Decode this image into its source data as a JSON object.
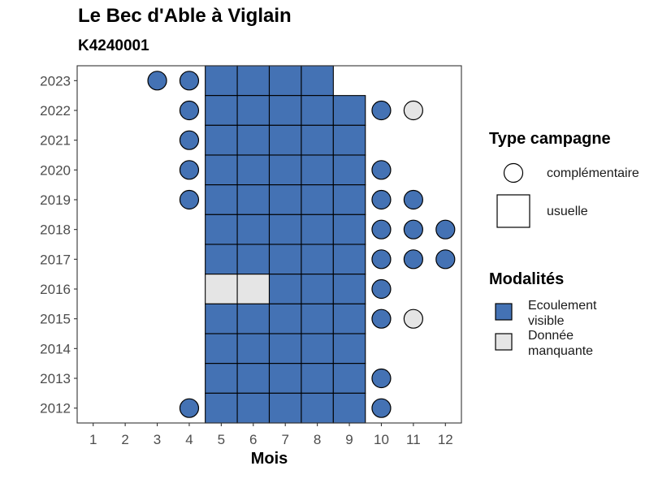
{
  "chart_data": {
    "type": "heatmap",
    "title": "Le Bec d'Able à Viglain",
    "subtitle": "K4240001",
    "xlabel": "Mois",
    "ylabel": "",
    "x_ticks": [
      1,
      2,
      3,
      4,
      5,
      6,
      7,
      8,
      9,
      10,
      11,
      12
    ],
    "y_ticks": [
      2012,
      2013,
      2014,
      2015,
      2016,
      2017,
      2018,
      2019,
      2020,
      2021,
      2022,
      2023
    ],
    "xlim": [
      0.5,
      12.5
    ],
    "ylim": [
      2011.5,
      2023.5
    ],
    "grid": false,
    "legend_position": "right",
    "legend_type": {
      "title": "Type campagne",
      "items": [
        {
          "label": "complémentaire",
          "shape": "circle"
        },
        {
          "label": "usuelle",
          "shape": "square"
        }
      ]
    },
    "legend_modalites": {
      "title": "Modalités",
      "items": [
        {
          "label_line1": "Ecoulement",
          "label_line2": "visible",
          "color": "#4472b4"
        },
        {
          "label_line1": "Donnée",
          "label_line2": "manquante",
          "color": "#e5e5e5"
        }
      ]
    },
    "points": [
      {
        "year": 2023,
        "month": 3,
        "type": "complémentaire",
        "modalite": "Ecoulement visible"
      },
      {
        "year": 2023,
        "month": 4,
        "type": "complémentaire",
        "modalite": "Ecoulement visible"
      },
      {
        "year": 2023,
        "month": 5,
        "type": "usuelle",
        "modalite": "Ecoulement visible"
      },
      {
        "year": 2023,
        "month": 6,
        "type": "usuelle",
        "modalite": "Ecoulement visible"
      },
      {
        "year": 2023,
        "month": 7,
        "type": "usuelle",
        "modalite": "Ecoulement visible"
      },
      {
        "year": 2023,
        "month": 8,
        "type": "usuelle",
        "modalite": "Ecoulement visible"
      },
      {
        "year": 2022,
        "month": 4,
        "type": "complémentaire",
        "modalite": "Ecoulement visible"
      },
      {
        "year": 2022,
        "month": 5,
        "type": "usuelle",
        "modalite": "Ecoulement visible"
      },
      {
        "year": 2022,
        "month": 6,
        "type": "usuelle",
        "modalite": "Ecoulement visible"
      },
      {
        "year": 2022,
        "month": 7,
        "type": "usuelle",
        "modalite": "Ecoulement visible"
      },
      {
        "year": 2022,
        "month": 8,
        "type": "usuelle",
        "modalite": "Ecoulement visible"
      },
      {
        "year": 2022,
        "month": 9,
        "type": "usuelle",
        "modalite": "Ecoulement visible"
      },
      {
        "year": 2022,
        "month": 10,
        "type": "complémentaire",
        "modalite": "Ecoulement visible"
      },
      {
        "year": 2022,
        "month": 11,
        "type": "complémentaire",
        "modalite": "Donnée manquante"
      },
      {
        "year": 2021,
        "month": 4,
        "type": "complémentaire",
        "modalite": "Ecoulement visible"
      },
      {
        "year": 2021,
        "month": 5,
        "type": "usuelle",
        "modalite": "Ecoulement visible"
      },
      {
        "year": 2021,
        "month": 6,
        "type": "usuelle",
        "modalite": "Ecoulement visible"
      },
      {
        "year": 2021,
        "month": 7,
        "type": "usuelle",
        "modalite": "Ecoulement visible"
      },
      {
        "year": 2021,
        "month": 8,
        "type": "usuelle",
        "modalite": "Ecoulement visible"
      },
      {
        "year": 2021,
        "month": 9,
        "type": "usuelle",
        "modalite": "Ecoulement visible"
      },
      {
        "year": 2020,
        "month": 4,
        "type": "complémentaire",
        "modalite": "Ecoulement visible"
      },
      {
        "year": 2020,
        "month": 5,
        "type": "usuelle",
        "modalite": "Ecoulement visible"
      },
      {
        "year": 2020,
        "month": 6,
        "type": "usuelle",
        "modalite": "Ecoulement visible"
      },
      {
        "year": 2020,
        "month": 7,
        "type": "usuelle",
        "modalite": "Ecoulement visible"
      },
      {
        "year": 2020,
        "month": 8,
        "type": "usuelle",
        "modalite": "Ecoulement visible"
      },
      {
        "year": 2020,
        "month": 9,
        "type": "usuelle",
        "modalite": "Ecoulement visible"
      },
      {
        "year": 2020,
        "month": 10,
        "type": "complémentaire",
        "modalite": "Ecoulement visible"
      },
      {
        "year": 2019,
        "month": 4,
        "type": "complémentaire",
        "modalite": "Ecoulement visible"
      },
      {
        "year": 2019,
        "month": 5,
        "type": "usuelle",
        "modalite": "Ecoulement visible"
      },
      {
        "year": 2019,
        "month": 6,
        "type": "usuelle",
        "modalite": "Ecoulement visible"
      },
      {
        "year": 2019,
        "month": 7,
        "type": "usuelle",
        "modalite": "Ecoulement visible"
      },
      {
        "year": 2019,
        "month": 8,
        "type": "usuelle",
        "modalite": "Ecoulement visible"
      },
      {
        "year": 2019,
        "month": 9,
        "type": "usuelle",
        "modalite": "Ecoulement visible"
      },
      {
        "year": 2019,
        "month": 10,
        "type": "complémentaire",
        "modalite": "Ecoulement visible"
      },
      {
        "year": 2019,
        "month": 11,
        "type": "complémentaire",
        "modalite": "Ecoulement visible"
      },
      {
        "year": 2018,
        "month": 5,
        "type": "usuelle",
        "modalite": "Ecoulement visible"
      },
      {
        "year": 2018,
        "month": 6,
        "type": "usuelle",
        "modalite": "Ecoulement visible"
      },
      {
        "year": 2018,
        "month": 7,
        "type": "usuelle",
        "modalite": "Ecoulement visible"
      },
      {
        "year": 2018,
        "month": 8,
        "type": "usuelle",
        "modalite": "Ecoulement visible"
      },
      {
        "year": 2018,
        "month": 9,
        "type": "usuelle",
        "modalite": "Ecoulement visible"
      },
      {
        "year": 2018,
        "month": 10,
        "type": "complémentaire",
        "modalite": "Ecoulement visible"
      },
      {
        "year": 2018,
        "month": 11,
        "type": "complémentaire",
        "modalite": "Ecoulement visible"
      },
      {
        "year": 2018,
        "month": 12,
        "type": "complémentaire",
        "modalite": "Ecoulement visible"
      },
      {
        "year": 2017,
        "month": 5,
        "type": "usuelle",
        "modalite": "Ecoulement visible"
      },
      {
        "year": 2017,
        "month": 6,
        "type": "usuelle",
        "modalite": "Ecoulement visible"
      },
      {
        "year": 2017,
        "month": 7,
        "type": "usuelle",
        "modalite": "Ecoulement visible"
      },
      {
        "year": 2017,
        "month": 8,
        "type": "usuelle",
        "modalite": "Ecoulement visible"
      },
      {
        "year": 2017,
        "month": 9,
        "type": "usuelle",
        "modalite": "Ecoulement visible"
      },
      {
        "year": 2017,
        "month": 10,
        "type": "complémentaire",
        "modalite": "Ecoulement visible"
      },
      {
        "year": 2017,
        "month": 11,
        "type": "complémentaire",
        "modalite": "Ecoulement visible"
      },
      {
        "year": 2017,
        "month": 12,
        "type": "complémentaire",
        "modalite": "Ecoulement visible"
      },
      {
        "year": 2016,
        "month": 5,
        "type": "usuelle",
        "modalite": "Donnée manquante"
      },
      {
        "year": 2016,
        "month": 6,
        "type": "usuelle",
        "modalite": "Donnée manquante"
      },
      {
        "year": 2016,
        "month": 7,
        "type": "usuelle",
        "modalite": "Ecoulement visible"
      },
      {
        "year": 2016,
        "month": 8,
        "type": "usuelle",
        "modalite": "Ecoulement visible"
      },
      {
        "year": 2016,
        "month": 9,
        "type": "usuelle",
        "modalite": "Ecoulement visible"
      },
      {
        "year": 2016,
        "month": 10,
        "type": "complémentaire",
        "modalite": "Ecoulement visible"
      },
      {
        "year": 2015,
        "month": 5,
        "type": "usuelle",
        "modalite": "Ecoulement visible"
      },
      {
        "year": 2015,
        "month": 6,
        "type": "usuelle",
        "modalite": "Ecoulement visible"
      },
      {
        "year": 2015,
        "month": 7,
        "type": "usuelle",
        "modalite": "Ecoulement visible"
      },
      {
        "year": 2015,
        "month": 8,
        "type": "usuelle",
        "modalite": "Ecoulement visible"
      },
      {
        "year": 2015,
        "month": 9,
        "type": "usuelle",
        "modalite": "Ecoulement visible"
      },
      {
        "year": 2015,
        "month": 10,
        "type": "complémentaire",
        "modalite": "Ecoulement visible"
      },
      {
        "year": 2015,
        "month": 11,
        "type": "complémentaire",
        "modalite": "Donnée manquante"
      },
      {
        "year": 2014,
        "month": 5,
        "type": "usuelle",
        "modalite": "Ecoulement visible"
      },
      {
        "year": 2014,
        "month": 6,
        "type": "usuelle",
        "modalite": "Ecoulement visible"
      },
      {
        "year": 2014,
        "month": 7,
        "type": "usuelle",
        "modalite": "Ecoulement visible"
      },
      {
        "year": 2014,
        "month": 8,
        "type": "usuelle",
        "modalite": "Ecoulement visible"
      },
      {
        "year": 2014,
        "month": 9,
        "type": "usuelle",
        "modalite": "Ecoulement visible"
      },
      {
        "year": 2013,
        "month": 5,
        "type": "usuelle",
        "modalite": "Ecoulement visible"
      },
      {
        "year": 2013,
        "month": 6,
        "type": "usuelle",
        "modalite": "Ecoulement visible"
      },
      {
        "year": 2013,
        "month": 7,
        "type": "usuelle",
        "modalite": "Ecoulement visible"
      },
      {
        "year": 2013,
        "month": 8,
        "type": "usuelle",
        "modalite": "Ecoulement visible"
      },
      {
        "year": 2013,
        "month": 9,
        "type": "usuelle",
        "modalite": "Ecoulement visible"
      },
      {
        "year": 2013,
        "month": 10,
        "type": "complémentaire",
        "modalite": "Ecoulement visible"
      },
      {
        "year": 2012,
        "month": 4,
        "type": "complémentaire",
        "modalite": "Ecoulement visible"
      },
      {
        "year": 2012,
        "month": 5,
        "type": "usuelle",
        "modalite": "Ecoulement visible"
      },
      {
        "year": 2012,
        "month": 6,
        "type": "usuelle",
        "modalite": "Ecoulement visible"
      },
      {
        "year": 2012,
        "month": 7,
        "type": "usuelle",
        "modalite": "Ecoulement visible"
      },
      {
        "year": 2012,
        "month": 8,
        "type": "usuelle",
        "modalite": "Ecoulement visible"
      },
      {
        "year": 2012,
        "month": 9,
        "type": "usuelle",
        "modalite": "Ecoulement visible"
      },
      {
        "year": 2012,
        "month": 10,
        "type": "complémentaire",
        "modalite": "Ecoulement visible"
      }
    ]
  },
  "colors": {
    "ecoulement_visible": "#4472b4",
    "donnee_manquante": "#e5e5e5",
    "outline": "#000000",
    "axis_text": "#4d4d4d"
  }
}
